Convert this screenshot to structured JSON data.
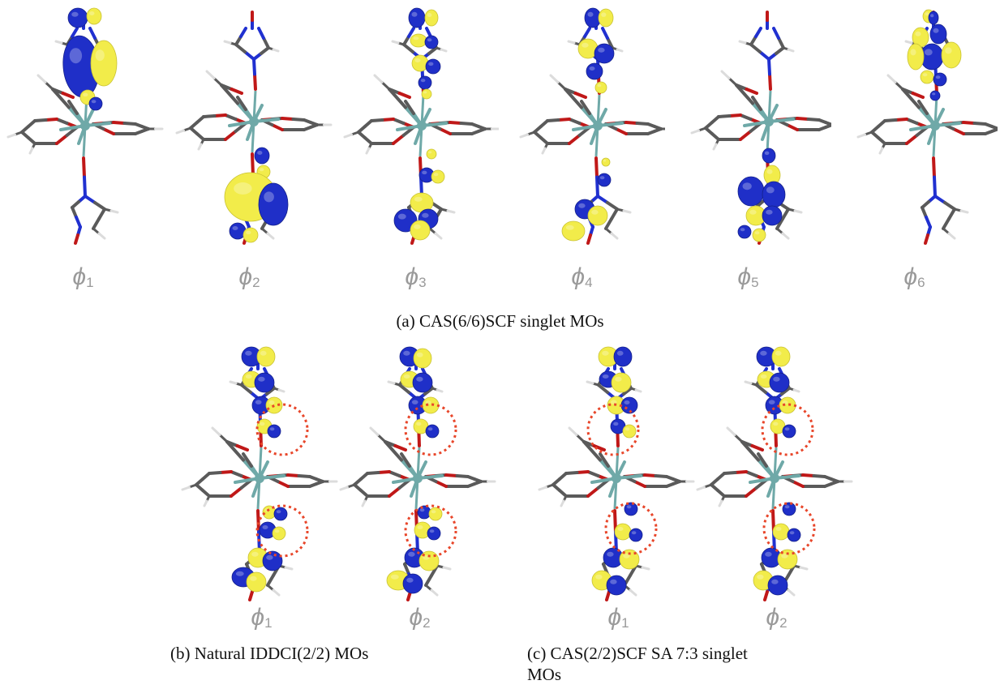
{
  "figure": {
    "panel_a": {
      "caption": "(a) CAS(6/6)SCF singlet MOs",
      "orbitals": [
        {
          "symbol": "ϕ",
          "index": "1"
        },
        {
          "symbol": "ϕ",
          "index": "2"
        },
        {
          "symbol": "ϕ",
          "index": "3"
        },
        {
          "symbol": "ϕ",
          "index": "4"
        },
        {
          "symbol": "ϕ",
          "index": "5"
        },
        {
          "symbol": "ϕ",
          "index": "6"
        }
      ]
    },
    "panel_b": {
      "caption": "(b) Natural IDDCI(2/2) MOs",
      "orbitals": [
        {
          "symbol": "ϕ",
          "index": "1"
        },
        {
          "symbol": "ϕ",
          "index": "2"
        }
      ]
    },
    "panel_c": {
      "caption_line1": "(c) CAS(2/2)SCF SA 7:3 singlet",
      "caption_line2": "MOs",
      "orbitals": [
        {
          "symbol": "ϕ",
          "index": "1"
        },
        {
          "symbol": "ϕ",
          "index": "2"
        }
      ]
    }
  },
  "colors": {
    "lobe_positive": "#f2ec4a",
    "lobe_negative": "#1f2fc8",
    "metal": "#6fa9a8",
    "oxygen": "#c01818",
    "nitrogen": "#2030d0",
    "carbon": "#5a5a5a",
    "hydrogen": "#dcdcdc",
    "highlight_circle": "#e8462a"
  }
}
